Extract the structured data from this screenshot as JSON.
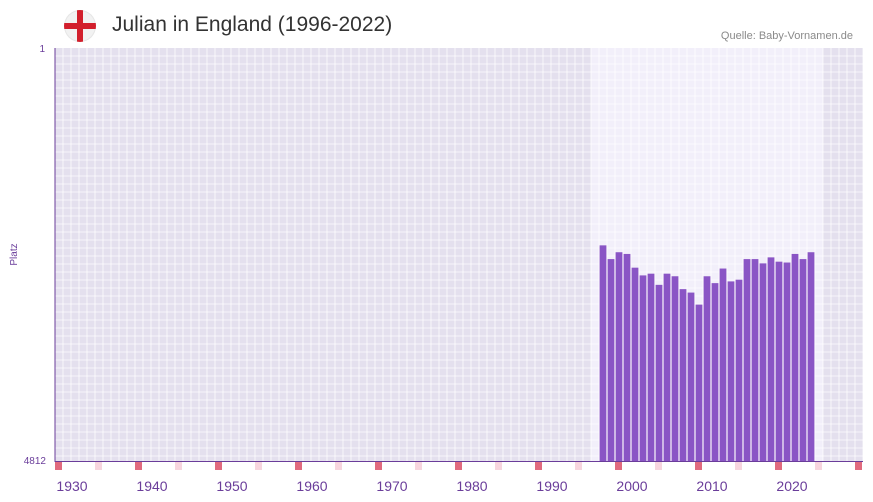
{
  "header": {
    "title": "Julian in England (1996-2022)",
    "source": "Quelle: Baby-Vornamen.de",
    "flag_icon": "england-flag-icon"
  },
  "chart_data": {
    "type": "bar",
    "title": "Julian in England (1996-2022)",
    "xlabel": "",
    "ylabel": "Platz",
    "y_axis_inverted": true,
    "ylim": [
      4812,
      1
    ],
    "y_tick_labels": [
      "1",
      "4812"
    ],
    "x_range": [
      1928,
      2028
    ],
    "x_ticks": [
      1930,
      1940,
      1950,
      1960,
      1970,
      1980,
      1990,
      2000,
      2010,
      2020
    ],
    "highlight_range": [
      1996,
      2022
    ],
    "series": [
      {
        "name": "Julian",
        "color": "#8a55c5",
        "x": [
          1996,
          1997,
          1998,
          1999,
          2000,
          2001,
          2002,
          2003,
          2004,
          2005,
          2006,
          2007,
          2008,
          2009,
          2010,
          2011,
          2012,
          2013,
          2014,
          2015,
          2016,
          2017,
          2018,
          2019,
          2020,
          2021,
          2022
        ],
        "values": [
          2300,
          2460,
          2380,
          2400,
          2560,
          2650,
          2630,
          2760,
          2630,
          2660,
          2810,
          2850,
          2990,
          2660,
          2740,
          2570,
          2720,
          2700,
          2460,
          2460,
          2510,
          2440,
          2490,
          2500,
          2400,
          2460,
          2380
        ]
      }
    ],
    "decade_markers": [
      1928,
      1938,
      1948,
      1958,
      1968,
      1978,
      1988,
      1998,
      2008,
      2018,
      2028
    ],
    "half_decade_markers": [
      1933,
      1943,
      1953,
      1963,
      1973,
      1983,
      1993,
      2003,
      2013,
      2023
    ],
    "colors": {
      "plot_background": "#e4e0ee",
      "highlight_background": "#f2effa",
      "grid": "#ffffff",
      "axis": "#6a3d9a",
      "bar": "#8a55c5",
      "decade_marker": "#e06a7e",
      "half_decade_marker": "#f7d5de"
    }
  }
}
